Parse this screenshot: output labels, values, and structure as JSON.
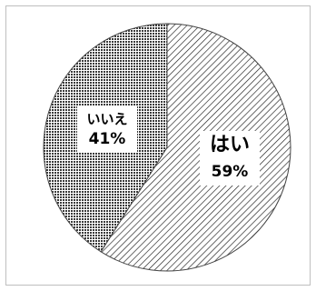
{
  "chart_data": {
    "type": "pie",
    "categories": [
      "はい",
      "いいえ"
    ],
    "values": [
      59,
      41
    ],
    "value_labels": [
      "59%",
      "41%"
    ],
    "start_angle_deg": 0,
    "direction": "clockwise",
    "title": "",
    "legend": "none",
    "slice_patterns": [
      "diagonal-hatch",
      "dot-grid"
    ]
  }
}
